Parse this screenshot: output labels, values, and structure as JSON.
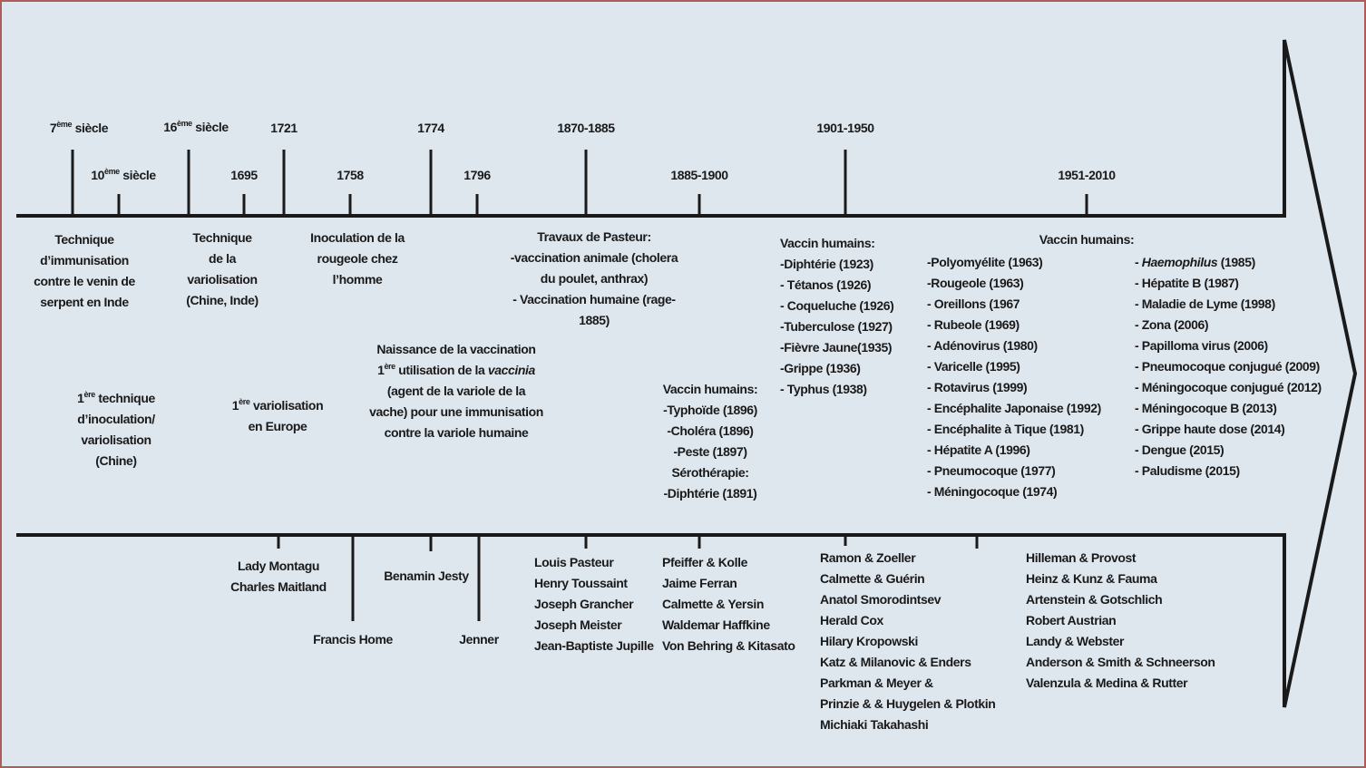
{
  "dates": {
    "d7": {
      "num": "7",
      "sup": "ème",
      "rest": " siècle"
    },
    "d10": {
      "num": "10",
      "sup": "ème",
      "rest": " siècle"
    },
    "d16": {
      "num": "16",
      "sup": "ème",
      "rest": " siècle"
    },
    "d1695": "1695",
    "d1721": "1721",
    "d1758": "1758",
    "d1774": "1774",
    "d1796": "1796",
    "d1870": "1870-1885",
    "d1885": "1885-1900",
    "d1901": "1901-1950",
    "d1951": "1951-2010"
  },
  "events": {
    "serpent": [
      "Technique",
      "d’immunisation",
      "contre le venin de",
      "serpent en Inde"
    ],
    "variolisation_tech": [
      "Technique",
      "de la",
      "variolisation",
      "(Chine, Inde)"
    ],
    "rougeole": [
      "Inoculation de la",
      "rougeole chez",
      "l’homme"
    ],
    "pasteur_title": "Travaux de Pasteur:",
    "pasteur_lines": [
      "-vaccination animale (cholera",
      "du poulet, anthrax)",
      "- Vaccination humaine (rage-",
      "1885)"
    ],
    "first_inoc": {
      "num": "1",
      "sup": "ère",
      "rest": " technique",
      "lines": [
        "d’inoculation/",
        "variolisation",
        "(Chine)"
      ]
    },
    "first_var_eu": {
      "num": "1",
      "sup": "ère",
      "rest": " variolisation",
      "line2": "en Europe"
    },
    "naissance": {
      "title": "Naissance de la vaccination",
      "l2_num": "1",
      "l2_sup": "ère",
      "l2_pre": " utilisation de la ",
      "l2_em": "vaccinia",
      "lines": [
        "(agent de la variole de la",
        "vache) pour une immunisation",
        "contre la variole humaine"
      ]
    },
    "v1885_title": "Vaccin humains:",
    "v1885_lines": [
      "-Typhoïde (1896)",
      "-Choléra (1896)",
      "-Peste (1897)"
    ],
    "v1885_sero": "Sérothérapie:",
    "v1885_sero_line": "-Diphtérie (1891)",
    "v1901_title": "Vaccin humains:",
    "v1901_lines": [
      "-Diphtérie (1923)",
      "- Tétanos (1926)",
      "- Coqueluche (1926)",
      "-Tuberculose (1927)",
      "-Fièvre Jaune(1935)",
      "-Grippe (1936)",
      "- Typhus (1938)"
    ],
    "v1951_title": "Vaccin humains:",
    "v1951_col1": [
      "-Polyomyélite (1963)",
      "-Rougeole (1963)",
      "- Oreillons (1967",
      "- Rubeole (1969)",
      "- Adénovirus (1980)",
      "- Varicelle (1995)",
      "- Rotavirus (1999)",
      "- Encéphalite Japonaise (1992)",
      "- Encéphalite à Tique (1981)",
      "- Hépatite A (1996)",
      "- Pneumocoque (1977)",
      "- Méningocoque (1974)"
    ],
    "v1951_col2_first_em": "Haemophilus",
    "v1951_col2_first_rest": " (1985)",
    "v1951_col2": [
      "- Hépatite B (1987)",
      "- Maladie de Lyme (1998)",
      "- Zona (2006)",
      "- Papilloma virus (2006)",
      "- Pneumocoque conjugué (2009)",
      "- Méningocoque conjugué (2012)",
      "- Méningocoque B (2013)",
      "- Grippe haute dose (2014)",
      "- Dengue (2015)",
      "- Paludisme (2015)"
    ]
  },
  "people": {
    "montagu": [
      "Lady Montagu",
      "Charles Maitland"
    ],
    "home": "Francis Home",
    "jesty": "Benamin Jesty",
    "jenner": "Jenner",
    "pasteur": [
      "Louis Pasteur",
      "Henry Toussaint",
      "Joseph Grancher",
      "Joseph Meister",
      "Jean-Baptiste Jupille"
    ],
    "pfeiffer": [
      "Pfeiffer & Kolle",
      "Jaime Ferran",
      "Calmette & Yersin",
      "Waldemar Haffkine",
      "Von Behring & Kitasato"
    ],
    "ramon": [
      "Ramon & Zoeller",
      "Calmette & Guérin",
      "Anatol Smorodintsev",
      "Herald Cox",
      "Hilary Kropowski",
      "Katz & Milanovic & Enders",
      "Parkman & Meyer &",
      "Prinzie & & Huygelen & Plotkin",
      "Michiaki Takahashi"
    ],
    "hilleman": [
      "Hilleman & Provost",
      "Heinz & Kunz & Fauma",
      "Artenstein & Gotschlich",
      "Robert Austrian",
      "Landy & Webster",
      "Anderson & Smith & Schneerson",
      "Valenzula & Medina & Rutter"
    ]
  },
  "colors": {
    "background": "#dfe7ee",
    "border": "#b05a5a",
    "line": "#1a1a1a"
  }
}
